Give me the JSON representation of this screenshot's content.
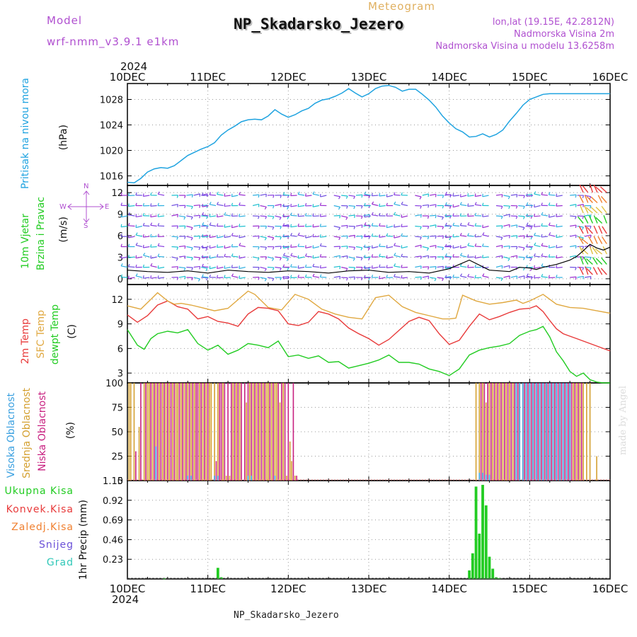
{
  "header": {
    "model_label": "Model",
    "model_name": "wrf-nmm_v3.9.1 e1km",
    "meteogram_label": "Meteogram",
    "station_title": "NP_Skadarsko_Jezero",
    "coords": "lon,lat (19.15E, 42.2812N)",
    "elevation": "Nadmorska Visina 2m",
    "model_elevation": "Nadmorska Visina u modelu 13.6258m",
    "year_label": "2024",
    "footer_station": "NP_Skadarsko_Jezero",
    "signature": "made by Angel"
  },
  "time_axis": {
    "labels": [
      "10DEC",
      "11DEC",
      "12DEC",
      "13DEC",
      "14DEC",
      "15DEC",
      "16DEC"
    ],
    "range_hours": [
      0,
      144
    ]
  },
  "compass": {
    "n": "N",
    "s": "S",
    "e": "E",
    "w": "W"
  },
  "colors": {
    "pressure": "#1fa3e0",
    "wind_speed": "#000000",
    "temp_2m": "#e83a3a",
    "temp_sfc": "#e0a840",
    "dewpoint": "#22cc22",
    "cloud_high": "#3aa0e0",
    "cloud_mid": "#d4a030",
    "cloud_low": "#c82080",
    "precip_total": "#22cc22",
    "purple_text": "#b050d0"
  },
  "chart_data": [
    {
      "type": "line",
      "ylabel_parts": [
        "Pritisak na nivou mora",
        "(hPa)"
      ],
      "ylim": [
        1014.5,
        1030.5
      ],
      "yticks": [
        1016,
        1020,
        1024,
        1028
      ],
      "grid": true,
      "series": [
        {
          "x": [
            0,
            2,
            4,
            6,
            8,
            10,
            12,
            14,
            16,
            18,
            20,
            22,
            24,
            26,
            28,
            30,
            32,
            34,
            36,
            38,
            40,
            42,
            44,
            46,
            48,
            50,
            52,
            54,
            56,
            58,
            60,
            62,
            64,
            66,
            68,
            70,
            72,
            74,
            76,
            78,
            80,
            82,
            84,
            86,
            88,
            90,
            92,
            94,
            96,
            98,
            100,
            102,
            104,
            106,
            108,
            110,
            112,
            114,
            116,
            118,
            120,
            122,
            124,
            126,
            128,
            130,
            132,
            134,
            136,
            138,
            140,
            142,
            144
          ],
          "values": [
            1015.0,
            1014.9,
            1015.6,
            1016.6,
            1017.1,
            1017.3,
            1017.2,
            1017.6,
            1018.4,
            1019.2,
            1019.7,
            1020.2,
            1020.6,
            1021.2,
            1022.4,
            1023.2,
            1023.8,
            1024.5,
            1024.8,
            1024.9,
            1024.8,
            1025.4,
            1026.4,
            1025.7,
            1025.2,
            1025.6,
            1026.2,
            1026.6,
            1027.4,
            1027.9,
            1028.1,
            1028.5,
            1029.0,
            1029.7,
            1029.0,
            1028.4,
            1028.9,
            1029.7,
            1030.1,
            1030.2,
            1029.9,
            1029.3,
            1029.6,
            1029.6,
            1028.8,
            1027.9,
            1026.8,
            1025.4,
            1024.3,
            1023.4,
            1022.9,
            1022.1,
            1022.2,
            1022.6,
            1022.1,
            1022.5,
            1023.2,
            1024.6,
            1025.8,
            1027.1,
            1028.0,
            1028.4,
            1028.8,
            1028.9,
            1028.9,
            1028.9,
            1028.9,
            1028.9,
            1028.9,
            1028.9,
            1028.9,
            1028.9,
            1028.9
          ]
        }
      ]
    },
    {
      "type": "line",
      "ylabel_parts": [
        "10m Vjetar",
        "Brzina i Pravac",
        "(m/s)"
      ],
      "ylim": [
        -0.8,
        13.0
      ],
      "yticks": [
        0,
        3,
        6,
        9,
        12
      ],
      "grid": true,
      "series": [
        {
          "x": [
            0,
            6,
            12,
            18,
            24,
            30,
            36,
            42,
            48,
            54,
            60,
            66,
            72,
            78,
            84,
            90,
            96,
            102,
            108,
            114,
            117,
            120,
            122,
            124,
            126,
            128,
            130,
            132,
            134,
            136,
            138,
            140,
            142,
            144
          ],
          "values": [
            1.2,
            1.0,
            0.9,
            1.1,
            0.8,
            1.2,
            1.0,
            0.9,
            1.1,
            1.0,
            0.8,
            1.1,
            1.2,
            0.9,
            1.0,
            0.8,
            1.4,
            2.6,
            1.2,
            1.0,
            1.6,
            1.5,
            1.3,
            1.6,
            1.8,
            2.0,
            2.3,
            2.6,
            3.1,
            3.9,
            4.8,
            4.3,
            4.0,
            4.4
          ]
        }
      ]
    },
    {
      "type": "line",
      "ylabel_parts": [
        "2m Temp",
        "SFC Temp",
        "dewpt Temp",
        "(C)"
      ],
      "ylim": [
        1.8,
        13.8
      ],
      "yticks": [
        3,
        6,
        9,
        12
      ],
      "grid": true,
      "series": [
        {
          "x": [
            0,
            3,
            6,
            9,
            12,
            15,
            18,
            21,
            24,
            27,
            30,
            33,
            36,
            39,
            42,
            45,
            48,
            51,
            54,
            57,
            60,
            63,
            66,
            69,
            72,
            75,
            78,
            81,
            84,
            87,
            90,
            93,
            96,
            99,
            102,
            105,
            108,
            111,
            114,
            117,
            120,
            122,
            124,
            126,
            128,
            130,
            132,
            134,
            136,
            138,
            140,
            142,
            144
          ],
          "values": [
            10.1,
            9.2,
            10.0,
            11.3,
            11.8,
            11.1,
            10.8,
            9.6,
            9.9,
            9.3,
            9.1,
            8.7,
            10.2,
            11.0,
            10.9,
            10.6,
            9.0,
            8.8,
            9.2,
            10.5,
            10.2,
            9.6,
            8.5,
            7.8,
            7.2,
            6.4,
            7.1,
            8.2,
            9.3,
            9.8,
            9.4,
            7.8,
            6.5,
            7.0,
            8.7,
            10.2,
            9.5,
            9.9,
            10.4,
            10.8,
            10.9,
            11.2,
            10.5,
            9.4,
            8.4,
            7.8,
            7.5,
            7.2,
            6.9,
            6.6,
            6.3,
            6.0,
            5.7
          ]
        },
        {
          "x": [
            0,
            4,
            7,
            9,
            12,
            14,
            16,
            19,
            22,
            26,
            30,
            34,
            36,
            38,
            42,
            46,
            50,
            54,
            58,
            62,
            66,
            70,
            74,
            78,
            82,
            86,
            90,
            94,
            96,
            98,
            100,
            104,
            108,
            112,
            116,
            118,
            120,
            124,
            128,
            132,
            136,
            140,
            144
          ],
          "values": [
            11.2,
            10.8,
            12.0,
            12.8,
            11.8,
            11.4,
            11.5,
            11.3,
            11.0,
            10.6,
            10.9,
            12.3,
            13.0,
            12.6,
            11.0,
            10.7,
            12.6,
            12.0,
            10.8,
            10.2,
            9.8,
            9.6,
            12.2,
            12.5,
            11.1,
            10.4,
            10.0,
            9.6,
            9.6,
            9.7,
            12.5,
            11.8,
            11.4,
            11.6,
            11.9,
            11.5,
            11.8,
            12.6,
            11.4,
            11.0,
            10.9,
            10.6,
            10.3
          ]
        },
        {
          "x": [
            0,
            3,
            5,
            7,
            9,
            12,
            15,
            18,
            21,
            24,
            27,
            30,
            33,
            36,
            39,
            42,
            45,
            48,
            51,
            54,
            57,
            60,
            63,
            66,
            69,
            72,
            75,
            78,
            81,
            84,
            87,
            90,
            93,
            96,
            99,
            102,
            105,
            108,
            111,
            114,
            117,
            120,
            122,
            124,
            126,
            128,
            130,
            132,
            134,
            136,
            138,
            140,
            142,
            144
          ],
          "values": [
            8.3,
            6.4,
            5.9,
            7.2,
            7.8,
            8.1,
            7.9,
            8.3,
            6.6,
            5.8,
            6.4,
            5.3,
            5.8,
            6.6,
            6.4,
            6.1,
            6.9,
            5.0,
            5.2,
            4.8,
            5.1,
            4.3,
            4.4,
            3.6,
            3.9,
            4.2,
            4.6,
            5.2,
            4.3,
            4.3,
            4.1,
            3.5,
            3.2,
            2.7,
            3.5,
            5.2,
            5.8,
            6.1,
            6.3,
            6.6,
            7.6,
            8.1,
            8.3,
            8.7,
            7.4,
            5.6,
            4.5,
            3.2,
            2.6,
            3.0,
            2.2,
            1.9,
            1.8,
            1.8
          ]
        }
      ]
    },
    {
      "type": "bar",
      "ylabel_parts": [
        "Visoka Oblacnost",
        "Srednja Oblacnost",
        "Niska Oblacnost",
        "(%)"
      ],
      "ylim": [
        0,
        100
      ],
      "yticks": [
        0,
        25,
        50,
        75,
        100
      ],
      "grid": true,
      "series": [
        {
          "name": "Srednja",
          "x": [
            0.5,
            1,
            2,
            3.5,
            5,
            6,
            6.5,
            7.5,
            8.5,
            9.5,
            10.5,
            11.5,
            12.5,
            13.5,
            14.5,
            15,
            16,
            17,
            18,
            19,
            20,
            21.5,
            22.5,
            23.5,
            24.5,
            25,
            26,
            27,
            28.5,
            29.5,
            30.5,
            31.5,
            32.5,
            33.5,
            35.5,
            36.5,
            37.5,
            38.5,
            39.5,
            40.5,
            41.5,
            42,
            43,
            44,
            44.5,
            45.5,
            46.5,
            47.5,
            48.5,
            49,
            50,
            104,
            105,
            106,
            107,
            108,
            109,
            110,
            111,
            112,
            113,
            114,
            115,
            116,
            117,
            118,
            119,
            120,
            121,
            122,
            123,
            124,
            125,
            126,
            127,
            128,
            129,
            130,
            131,
            132,
            133,
            134,
            135,
            136,
            137,
            138,
            140
          ],
          "values": [
            100,
            100,
            100,
            55,
            100,
            100,
            100,
            100,
            100,
            100,
            100,
            100,
            100,
            100,
            100,
            100,
            100,
            100,
            100,
            100,
            100,
            100,
            100,
            100,
            100,
            100,
            100,
            100,
            100,
            5,
            5,
            100,
            100,
            100,
            80,
            100,
            100,
            100,
            100,
            100,
            100,
            100,
            100,
            100,
            100,
            80,
            100,
            5,
            40,
            20,
            5,
            100,
            100,
            100,
            80,
            100,
            100,
            100,
            100,
            100,
            100,
            100,
            100,
            100,
            100,
            100,
            100,
            100,
            100,
            100,
            100,
            100,
            100,
            100,
            100,
            100,
            100,
            100,
            100,
            100,
            100,
            100,
            100,
            100,
            100,
            100,
            25
          ]
        },
        {
          "name": "Niska",
          "x": [
            2.5,
            4,
            5.5,
            7,
            8,
            9,
            10,
            11,
            12,
            13,
            14,
            15.5,
            16.5,
            17.5,
            18.5,
            19.5,
            20.5,
            21,
            22,
            23,
            24,
            26.5,
            27.5,
            28,
            29,
            30,
            31,
            32,
            33,
            34,
            35,
            36,
            37,
            38,
            39,
            40,
            41,
            42.5,
            43.5,
            45,
            46,
            47,
            48,
            49.5,
            50.5,
            105.5,
            106.5,
            107.5,
            108.5,
            109.5,
            110.5,
            111.5,
            112.5,
            113.5,
            114.5,
            115.5,
            116.5,
            118.5,
            119.5,
            120.5,
            121.5,
            122.5,
            123.5,
            124.5,
            125.5,
            126.5,
            127.5,
            128.5,
            129.5,
            130.5,
            131.5,
            132.5,
            133.5,
            134.5,
            135.5
          ],
          "values": [
            30,
            100,
            100,
            100,
            100,
            100,
            100,
            100,
            100,
            100,
            100,
            100,
            100,
            100,
            100,
            100,
            100,
            100,
            100,
            100,
            100,
            20,
            100,
            100,
            100,
            100,
            100,
            100,
            100,
            100,
            100,
            100,
            100,
            100,
            100,
            100,
            100,
            100,
            100,
            100,
            100,
            100,
            100,
            100,
            5,
            100,
            100,
            100,
            100,
            100,
            100,
            100,
            100,
            100,
            100,
            100,
            100,
            100,
            100,
            100,
            100,
            100,
            100,
            100,
            100,
            100,
            100,
            100,
            100,
            100,
            100,
            100,
            100,
            100,
            100
          ]
        },
        {
          "name": "Visoka",
          "x": [
            8.5,
            18,
            19,
            26,
            27,
            36,
            37,
            44,
            105,
            106,
            107,
            108,
            116,
            117,
            118,
            119,
            120,
            121,
            122,
            123,
            124,
            125,
            126,
            127,
            128,
            129,
            130,
            131,
            132
          ],
          "values": [
            35,
            5,
            5,
            5,
            5,
            5,
            5,
            5,
            8,
            8,
            6,
            6,
            100,
            100,
            100,
            100,
            100,
            100,
            100,
            100,
            100,
            100,
            100,
            100,
            100,
            100,
            100,
            100,
            100
          ]
        }
      ]
    },
    {
      "type": "bar",
      "ylabel_parts": [
        "1hr Precip (mm)"
      ],
      "legend_labels": [
        "Ukupna Kisa",
        "Konvek.Kisa",
        "Zaledj.Kisa",
        "Snijeg",
        "Grad"
      ],
      "legend_colors": [
        "#22cc22",
        "#e83a3a",
        "#f08030",
        "#6a50d8",
        "#30c8b8"
      ],
      "ylim": [
        0,
        1.15
      ],
      "yticks": [
        0.23,
        0.46,
        0.69,
        0.92,
        1.15
      ],
      "ytick_labels": [
        "0.23",
        "0.46",
        "0.69",
        "0.92",
        "1.15"
      ],
      "grid": true,
      "series": [
        {
          "name": "Ukupna Kisa",
          "x": [
            11,
            27,
            28,
            102,
            103,
            104,
            105,
            106,
            107,
            108,
            109,
            110,
            111
          ],
          "values": [
            0.005,
            0.13,
            0.02,
            0.1,
            0.3,
            1.08,
            0.53,
            1.1,
            0.86,
            0.26,
            0.12,
            0.02,
            0.01
          ]
        }
      ]
    }
  ]
}
